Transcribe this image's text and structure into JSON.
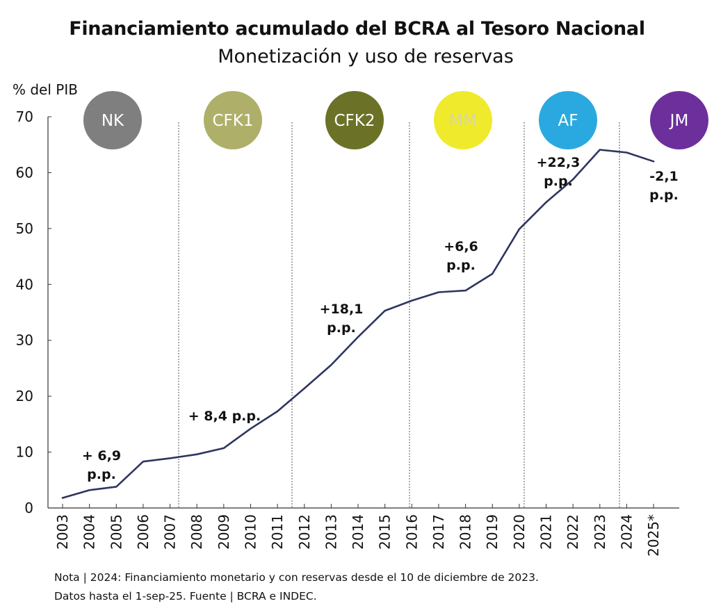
{
  "chart_data": {
    "type": "line",
    "title": "Financiamiento acumulado del BCRA al Tesoro Nacional",
    "subtitle": "Monetización y uso de reservas",
    "ylabel": "% del PIB",
    "xlabel": "",
    "ylim": [
      0,
      70
    ],
    "yticks": [
      "0",
      "10",
      "20",
      "30",
      "40",
      "50",
      "60",
      "70"
    ],
    "categories": [
      "2003",
      "2004",
      "2005",
      "2006",
      "2007",
      "2008",
      "2009",
      "2010",
      "2011",
      "2012",
      "2013",
      "2014",
      "2015",
      "2016",
      "2017",
      "2018",
      "2019",
      "2020",
      "2021",
      "2022",
      "2023",
      "2024",
      "2025*"
    ],
    "series": [
      {
        "values": [
          1.8,
          3.2,
          3.8,
          8.3,
          8.9,
          9.6,
          10.7,
          14.2,
          17.3,
          21.4,
          25.6,
          30.6,
          35.3,
          37.1,
          38.6,
          38.9,
          41.9,
          49.9,
          54.7,
          58.8,
          64.1,
          63.6,
          62.0
        ],
        "color": "#2e3560"
      }
    ],
    "periods": [
      {
        "label": "NK",
        "color": "#7f7f7f",
        "text_color": "#ffffff"
      },
      {
        "label": "CFK1",
        "color": "#aeb06a",
        "text_color": "#ffffff"
      },
      {
        "label": "CFK2",
        "color": "#6b7228",
        "text_color": "#ffffff"
      },
      {
        "label": "MM",
        "color": "#efea2c",
        "text_color": "#d8d8a0"
      },
      {
        "label": "AF",
        "color": "#2aa9e0",
        "text_color": "#ffffff"
      },
      {
        "label": "JM",
        "color": "#6d2f9c",
        "text_color": "#ffffff"
      }
    ],
    "annotations": [
      {
        "lines": [
          "+ 6,9",
          "p.p."
        ]
      },
      {
        "lines": [
          "+ 8,4 p.p."
        ]
      },
      {
        "lines": [
          "+18,1",
          "p.p."
        ]
      },
      {
        "lines": [
          "+6,6",
          "p.p."
        ]
      },
      {
        "lines": [
          "+22,3",
          "p.p."
        ]
      },
      {
        "lines": [
          "-2,1",
          "p.p."
        ]
      }
    ],
    "grid": false,
    "period_dividers": true
  },
  "notes": {
    "line1": "Nota | 2024: Financiamiento monetario y con reservas desde el 10 de diciembre de 2023.",
    "line2": "Datos hasta el 1-sep-25. Fuente | BCRA e INDEC."
  }
}
